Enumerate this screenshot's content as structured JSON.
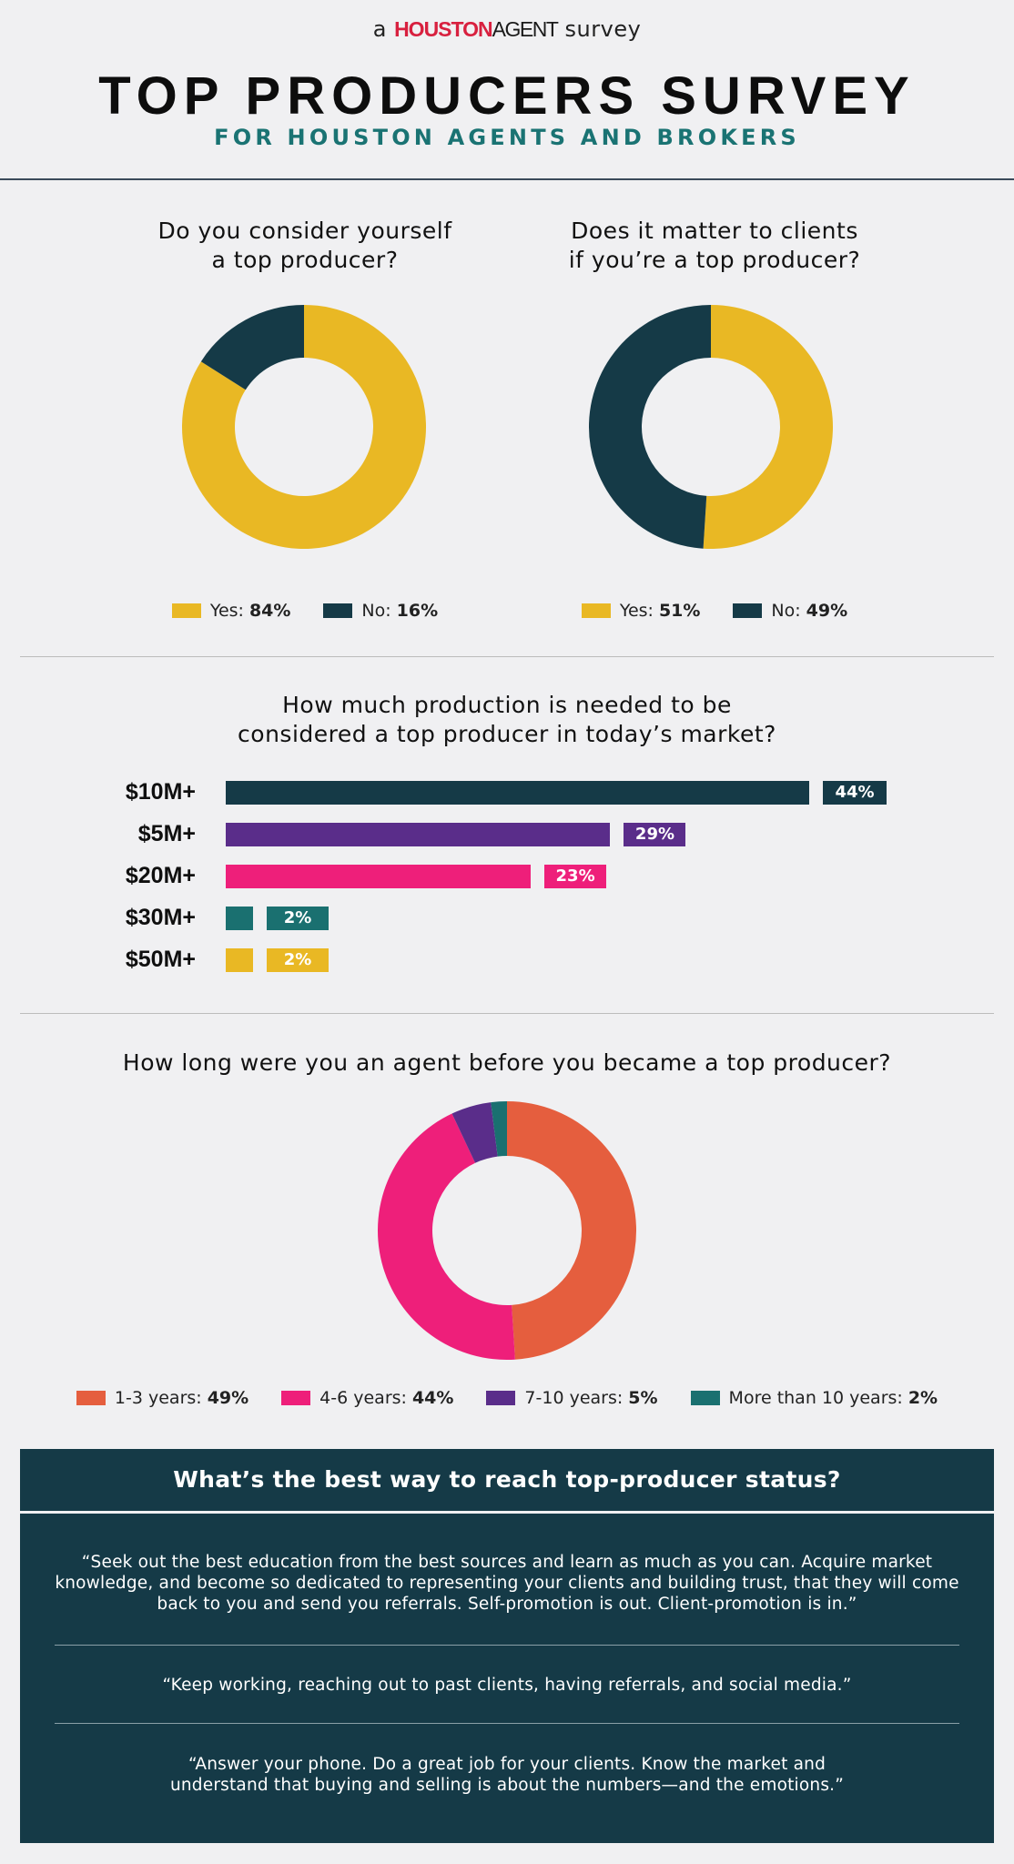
{
  "header": {
    "brand_prefix": "a",
    "brand_houston": "HOUSTON",
    "brand_agent": "AGENT",
    "brand_suffix": "survey",
    "title": "TOP PRODUCERS SURVEY",
    "subtitle": "FOR HOUSTON AGENTS AND BROKERS"
  },
  "colors": {
    "gold": "#e9b824",
    "navy": "#153a47",
    "purple": "#5a2d8a",
    "pink": "#ee1f7a",
    "teal": "#1a7070",
    "orange": "#e55e3e"
  },
  "chart_data": [
    {
      "type": "pie",
      "title": "Do you consider yourself a top producer?",
      "categories": [
        "Yes",
        "No"
      ],
      "values": [
        84,
        16
      ],
      "legend": [
        "Yes: ",
        "No: "
      ],
      "legend_values": [
        "84%",
        "16%"
      ]
    },
    {
      "type": "pie",
      "title": "Does it matter to clients if you’re a top producer?",
      "categories": [
        "Yes",
        "No"
      ],
      "values": [
        51,
        49
      ],
      "legend": [
        "Yes: ",
        "No: "
      ],
      "legend_values": [
        "51%",
        "49%"
      ]
    },
    {
      "type": "bar",
      "title": "How much production is needed to be considered a top producer in today’s market?",
      "categories": [
        "$10M+",
        "$5M+",
        "$20M+",
        "$30M+",
        "$50M+"
      ],
      "values": [
        44,
        29,
        23,
        2,
        2
      ],
      "labels": [
        "44%",
        "29%",
        "23%",
        "2%",
        "2%"
      ]
    },
    {
      "type": "pie",
      "title": "How long were you an agent before you became a top producer?",
      "categories": [
        "1-3 years",
        "4-6 years",
        "7-10 years",
        "More than 10 years"
      ],
      "values": [
        49,
        44,
        5,
        2
      ],
      "legend": [
        "1-3 years: ",
        "4-6 years: ",
        "7-10 years: ",
        "More than 10 years: "
      ],
      "legend_values": [
        "49%",
        "44%",
        "5%",
        "2%"
      ]
    }
  ],
  "questions": {
    "q1_line1": "Do you consider yourself",
    "q1_line2": "a top producer?",
    "q2_line1": "Does it matter to clients",
    "q2_line2": "if you’re a top producer?",
    "q3_line1": "How much production is needed to be",
    "q3_line2": "considered a top producer in today’s market?",
    "q4": "How long were you an agent before you became a top producer?"
  },
  "quotes": {
    "heading": "What’s the best way to reach top-producer status?",
    "items": [
      "“Seek out the best education from the best sources and learn as much as you can. Acquire market knowledge, and become so dedicated to representing your clients and building trust, that they will come back to you and send you referrals. Self-promotion is out. Client-promotion is in.”",
      "“Keep working, reaching out to past clients, having referrals, and social media.”",
      "“Answer your phone. Do a great job for your clients. Know the market and understand that buying and selling is about the numbers—and the emotions.”"
    ]
  }
}
